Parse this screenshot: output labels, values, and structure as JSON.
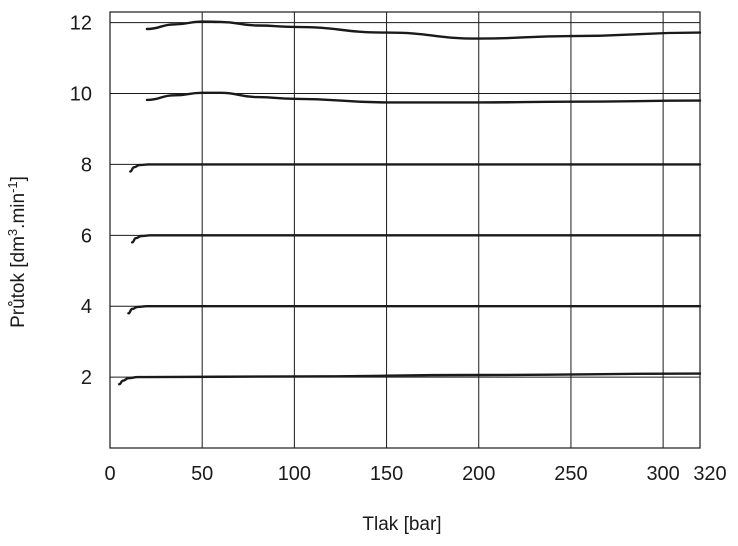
{
  "chart_data": {
    "type": "line",
    "title": "",
    "xlabel": "Tlak [bar]",
    "ylabel": {
      "text": "Průtok [dm",
      "sup1": "3",
      "mid": ".min",
      "sup2": "-1",
      "end": "]"
    },
    "xlim": [
      0,
      320
    ],
    "ylim": [
      0,
      12.3
    ],
    "x_ticks": [
      "0",
      "50",
      "100",
      "150",
      "200",
      "250",
      "300",
      "320"
    ],
    "x_tick_values": [
      0,
      50,
      100,
      150,
      200,
      250,
      300,
      320
    ],
    "y_ticks": [
      "2",
      "4",
      "6",
      "8",
      "10",
      "12"
    ],
    "y_tick_values": [
      2,
      4,
      6,
      8,
      10,
      12
    ],
    "grid": true,
    "series": [
      {
        "x": [
          5,
          7,
          10,
          15,
          20,
          100,
          200,
          320
        ],
        "y": [
          1.8,
          1.9,
          1.97,
          2.0,
          2.0,
          2.02,
          2.06,
          2.1
        ]
      },
      {
        "x": [
          10,
          12,
          15,
          20,
          320
        ],
        "y": [
          3.8,
          3.92,
          3.98,
          4.0,
          4.0
        ]
      },
      {
        "x": [
          12,
          14,
          17,
          22,
          320
        ],
        "y": [
          5.8,
          5.92,
          5.98,
          6.0,
          6.0
        ]
      },
      {
        "x": [
          11,
          13,
          16,
          21,
          320
        ],
        "y": [
          7.8,
          7.92,
          7.98,
          8.0,
          8.0
        ]
      },
      {
        "x": [
          20,
          35,
          50,
          60,
          80,
          100,
          150,
          200,
          250,
          320
        ],
        "y": [
          9.82,
          9.95,
          10.02,
          10.02,
          9.9,
          9.85,
          9.75,
          9.75,
          9.77,
          9.8
        ]
      },
      {
        "x": [
          20,
          35,
          50,
          60,
          80,
          100,
          150,
          200,
          250,
          320
        ],
        "y": [
          11.82,
          11.95,
          12.03,
          12.02,
          11.92,
          11.88,
          11.72,
          11.55,
          11.62,
          11.72
        ]
      }
    ]
  }
}
